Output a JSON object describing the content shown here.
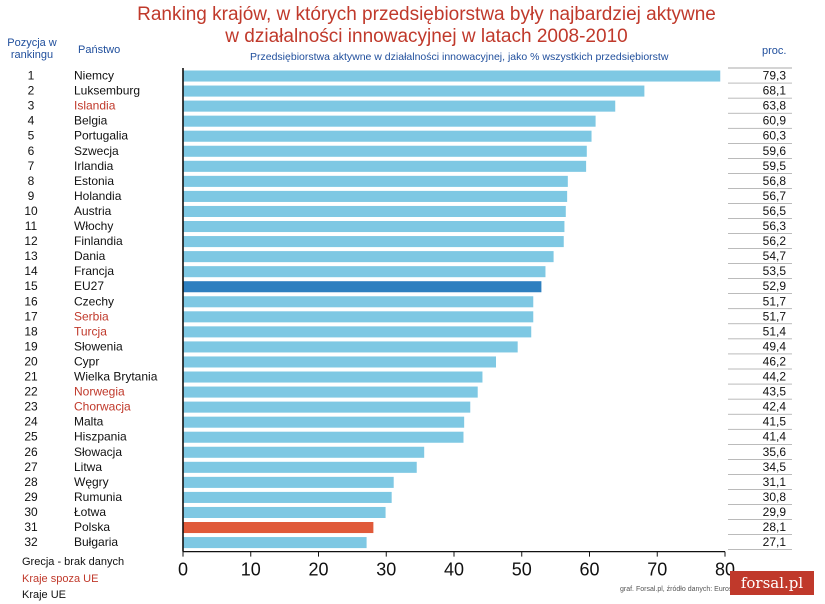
{
  "title_line1": "Ranking krajów, w których przedsiębiorstwa były najbardziej aktywne",
  "title_line2": "w działalności innowacyjnej w latach 2008-2010",
  "header": {
    "position_label": "Pozycja w rankingu",
    "country_label": "Państwo",
    "unit_label": "Przedsiębiorstwa aktywne w działalności innowacyjnej, jako % wszystkich przedsiębiorstw",
    "percent_label": "proc."
  },
  "legend": {
    "missing": "Grecja - brak danych",
    "non_eu": "Kraje spoza UE",
    "eu": "Kraje UE"
  },
  "source": "graf. Forsal.pl, źródło danych: Eurostat",
  "logo": "forsal.pl",
  "colors": {
    "title": "#c0392b",
    "bar": "#7ec8e3",
    "eu27_bar": "#2e7fbf",
    "poland_bar": "#e05a3a",
    "non_eu_text": "#c0392b",
    "eu_text": "#111111",
    "header_text": "#1f4e9c"
  },
  "chart_data": {
    "type": "bar",
    "orientation": "horizontal",
    "xlim": [
      0,
      80
    ],
    "xticks": [
      0,
      10,
      20,
      30,
      40,
      50,
      60,
      70,
      80
    ],
    "rows": [
      {
        "rank": "1",
        "country": "Niemcy",
        "value": 79.3,
        "label": "79,3",
        "group": "eu"
      },
      {
        "rank": "2",
        "country": "Luksemburg",
        "value": 68.1,
        "label": "68,1",
        "group": "eu"
      },
      {
        "rank": "3",
        "country": "Islandia",
        "value": 63.8,
        "label": "63,8",
        "group": "non_eu"
      },
      {
        "rank": "4",
        "country": "Belgia",
        "value": 60.9,
        "label": "60,9",
        "group": "eu"
      },
      {
        "rank": "5",
        "country": "Portugalia",
        "value": 60.3,
        "label": "60,3",
        "group": "eu"
      },
      {
        "rank": "6",
        "country": "Szwecja",
        "value": 59.6,
        "label": "59,6",
        "group": "eu"
      },
      {
        "rank": "7",
        "country": "Irlandia",
        "value": 59.5,
        "label": "59,5",
        "group": "eu"
      },
      {
        "rank": "8",
        "country": "Estonia",
        "value": 56.8,
        "label": "56,8",
        "group": "eu"
      },
      {
        "rank": "9",
        "country": "Holandia",
        "value": 56.7,
        "label": "56,7",
        "group": "eu"
      },
      {
        "rank": "10",
        "country": "Austria",
        "value": 56.5,
        "label": "56,5",
        "group": "eu"
      },
      {
        "rank": "11",
        "country": "Włochy",
        "value": 56.3,
        "label": "56,3",
        "group": "eu"
      },
      {
        "rank": "12",
        "country": "Finlandia",
        "value": 56.2,
        "label": "56,2",
        "group": "eu"
      },
      {
        "rank": "13",
        "country": "Dania",
        "value": 54.7,
        "label": "54,7",
        "group": "eu"
      },
      {
        "rank": "14",
        "country": "Francja",
        "value": 53.5,
        "label": "53,5",
        "group": "eu"
      },
      {
        "rank": "15",
        "country": "EU27",
        "value": 52.9,
        "label": "52,9",
        "group": "eu27"
      },
      {
        "rank": "16",
        "country": "Czechy",
        "value": 51.7,
        "label": "51,7",
        "group": "eu"
      },
      {
        "rank": "17",
        "country": "Serbia",
        "value": 51.7,
        "label": "51,7",
        "group": "non_eu"
      },
      {
        "rank": "18",
        "country": "Turcja",
        "value": 51.4,
        "label": "51,4",
        "group": "non_eu"
      },
      {
        "rank": "19",
        "country": "Słowenia",
        "value": 49.4,
        "label": "49,4",
        "group": "eu"
      },
      {
        "rank": "20",
        "country": "Cypr",
        "value": 46.2,
        "label": "46,2",
        "group": "eu"
      },
      {
        "rank": "21",
        "country": "Wielka Brytania",
        "value": 44.2,
        "label": "44,2",
        "group": "eu"
      },
      {
        "rank": "22",
        "country": "Norwegia",
        "value": 43.5,
        "label": "43,5",
        "group": "non_eu"
      },
      {
        "rank": "23",
        "country": "Chorwacja",
        "value": 42.4,
        "label": "42,4",
        "group": "non_eu"
      },
      {
        "rank": "24",
        "country": "Malta",
        "value": 41.5,
        "label": "41,5",
        "group": "eu"
      },
      {
        "rank": "25",
        "country": "Hiszpania",
        "value": 41.4,
        "label": "41,4",
        "group": "eu"
      },
      {
        "rank": "26",
        "country": "Słowacja",
        "value": 35.6,
        "label": "35,6",
        "group": "eu"
      },
      {
        "rank": "27",
        "country": "Litwa",
        "value": 34.5,
        "label": "34,5",
        "group": "eu"
      },
      {
        "rank": "28",
        "country": "Węgry",
        "value": 31.1,
        "label": "31,1",
        "group": "eu"
      },
      {
        "rank": "29",
        "country": "Rumunia",
        "value": 30.8,
        "label": "30,8",
        "group": "eu"
      },
      {
        "rank": "30",
        "country": "Łotwa",
        "value": 29.9,
        "label": "29,9",
        "group": "eu"
      },
      {
        "rank": "31",
        "country": "Polska",
        "value": 28.1,
        "label": "28,1",
        "group": "poland"
      },
      {
        "rank": "32",
        "country": "Bułgaria",
        "value": 27.1,
        "label": "27,1",
        "group": "eu"
      }
    ]
  }
}
